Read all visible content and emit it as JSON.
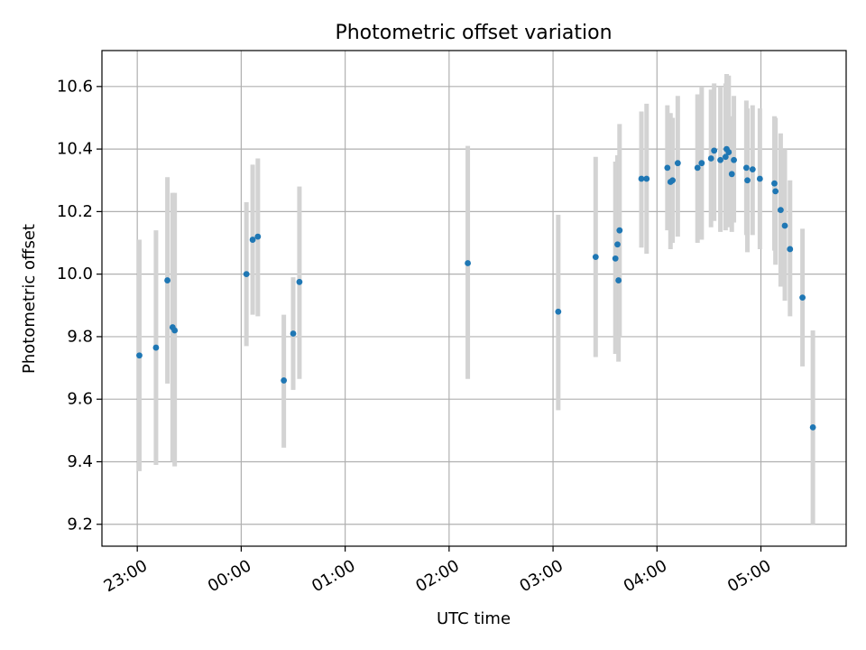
{
  "chart_data": {
    "type": "scatter",
    "title": "Photometric offset variation",
    "xlabel": "UTC time",
    "ylabel": "Photometric offset",
    "x_unit": "hours from 00:00 UTC (negative = previous day)",
    "xlim": [
      -1.34,
      5.82
    ],
    "ylim": [
      9.13,
      10.715
    ],
    "x_ticks": [
      {
        "value": -1,
        "label": "23:00"
      },
      {
        "value": 0,
        "label": "00:00"
      },
      {
        "value": 1,
        "label": "01:00"
      },
      {
        "value": 2,
        "label": "02:00"
      },
      {
        "value": 3,
        "label": "03:00"
      },
      {
        "value": 4,
        "label": "04:00"
      },
      {
        "value": 5,
        "label": "05:00"
      }
    ],
    "y_ticks": [
      {
        "value": 9.2,
        "label": "9.2"
      },
      {
        "value": 9.4,
        "label": "9.4"
      },
      {
        "value": 9.6,
        "label": "9.6"
      },
      {
        "value": 9.8,
        "label": "9.8"
      },
      {
        "value": 10.0,
        "label": "10.0"
      },
      {
        "value": 10.2,
        "label": "10.2"
      },
      {
        "value": 10.4,
        "label": "10.4"
      },
      {
        "value": 10.6,
        "label": "10.6"
      }
    ],
    "grid": true,
    "colors": {
      "point": "#1f77b4",
      "error_bar": "#d3d3d3",
      "grid": "#b0b0b0"
    },
    "points": [
      {
        "x": -0.98,
        "y": 9.74,
        "y_low": 9.37,
        "y_high": 10.11
      },
      {
        "x": -0.82,
        "y": 9.765,
        "y_low": 9.39,
        "y_high": 10.14
      },
      {
        "x": -0.71,
        "y": 9.98,
        "y_low": 9.65,
        "y_high": 10.31
      },
      {
        "x": -0.66,
        "y": 9.83,
        "y_low": 9.4,
        "y_high": 10.26
      },
      {
        "x": -0.64,
        "y": 9.82,
        "y_low": 9.385,
        "y_high": 10.26
      },
      {
        "x": 0.05,
        "y": 10.0,
        "y_low": 9.77,
        "y_high": 10.23
      },
      {
        "x": 0.11,
        "y": 10.11,
        "y_low": 9.87,
        "y_high": 10.35
      },
      {
        "x": 0.16,
        "y": 10.12,
        "y_low": 9.865,
        "y_high": 10.37
      },
      {
        "x": 0.41,
        "y": 9.66,
        "y_low": 9.445,
        "y_high": 9.87
      },
      {
        "x": 0.5,
        "y": 9.81,
        "y_low": 9.63,
        "y_high": 9.99
      },
      {
        "x": 0.56,
        "y": 9.975,
        "y_low": 9.665,
        "y_high": 10.28
      },
      {
        "x": 2.18,
        "y": 10.035,
        "y_low": 9.665,
        "y_high": 10.41
      },
      {
        "x": 3.05,
        "y": 9.88,
        "y_low": 9.565,
        "y_high": 10.19
      },
      {
        "x": 3.41,
        "y": 10.055,
        "y_low": 9.735,
        "y_high": 10.375
      },
      {
        "x": 3.6,
        "y": 10.05,
        "y_low": 9.745,
        "y_high": 10.36
      },
      {
        "x": 3.62,
        "y": 10.095,
        "y_low": 9.76,
        "y_high": 10.38
      },
      {
        "x": 3.63,
        "y": 9.98,
        "y_low": 9.72,
        "y_high": 10.24
      },
      {
        "x": 3.64,
        "y": 10.14,
        "y_low": 9.8,
        "y_high": 10.48
      },
      {
        "x": 3.85,
        "y": 10.305,
        "y_low": 10.085,
        "y_high": 10.52
      },
      {
        "x": 3.9,
        "y": 10.305,
        "y_low": 10.065,
        "y_high": 10.545
      },
      {
        "x": 4.1,
        "y": 10.34,
        "y_low": 10.14,
        "y_high": 10.54
      },
      {
        "x": 4.13,
        "y": 10.295,
        "y_low": 10.08,
        "y_high": 10.515
      },
      {
        "x": 4.15,
        "y": 10.3,
        "y_low": 10.1,
        "y_high": 10.5
      },
      {
        "x": 4.2,
        "y": 10.355,
        "y_low": 10.12,
        "y_high": 10.57
      },
      {
        "x": 4.39,
        "y": 10.34,
        "y_low": 10.1,
        "y_high": 10.575
      },
      {
        "x": 4.43,
        "y": 10.355,
        "y_low": 10.11,
        "y_high": 10.6
      },
      {
        "x": 4.52,
        "y": 10.37,
        "y_low": 10.15,
        "y_high": 10.59
      },
      {
        "x": 4.55,
        "y": 10.395,
        "y_low": 10.17,
        "y_high": 10.61
      },
      {
        "x": 4.61,
        "y": 10.365,
        "y_low": 10.135,
        "y_high": 10.6
      },
      {
        "x": 4.66,
        "y": 10.375,
        "y_low": 10.14,
        "y_high": 10.61
      },
      {
        "x": 4.67,
        "y": 10.4,
        "y_low": 10.16,
        "y_high": 10.64
      },
      {
        "x": 4.69,
        "y": 10.39,
        "y_low": 10.15,
        "y_high": 10.635
      },
      {
        "x": 4.72,
        "y": 10.32,
        "y_low": 10.135,
        "y_high": 10.505
      },
      {
        "x": 4.74,
        "y": 10.365,
        "y_low": 10.165,
        "y_high": 10.57
      },
      {
        "x": 4.86,
        "y": 10.34,
        "y_low": 10.125,
        "y_high": 10.555
      },
      {
        "x": 4.87,
        "y": 10.3,
        "y_low": 10.07,
        "y_high": 10.53
      },
      {
        "x": 4.92,
        "y": 10.335,
        "y_low": 10.125,
        "y_high": 10.54
      },
      {
        "x": 4.99,
        "y": 10.305,
        "y_low": 10.08,
        "y_high": 10.53
      },
      {
        "x": 5.13,
        "y": 10.29,
        "y_low": 10.075,
        "y_high": 10.505
      },
      {
        "x": 5.14,
        "y": 10.265,
        "y_low": 10.03,
        "y_high": 10.5
      },
      {
        "x": 5.19,
        "y": 10.205,
        "y_low": 9.96,
        "y_high": 10.45
      },
      {
        "x": 5.23,
        "y": 10.155,
        "y_low": 9.915,
        "y_high": 10.4
      },
      {
        "x": 5.28,
        "y": 10.08,
        "y_low": 9.865,
        "y_high": 10.3
      },
      {
        "x": 5.4,
        "y": 9.925,
        "y_low": 9.705,
        "y_high": 10.145
      },
      {
        "x": 5.5,
        "y": 9.51,
        "y_low": 9.2,
        "y_high": 9.82
      }
    ]
  }
}
